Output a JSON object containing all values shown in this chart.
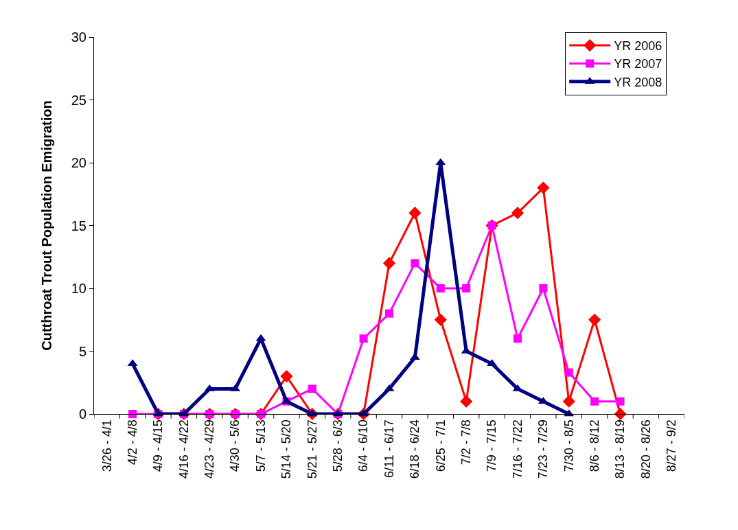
{
  "chart_data": {
    "type": "line",
    "ylabel": "Cutthroat Trout Population Emigration",
    "categories": [
      "3/26 - 4/1",
      "4/2 - 4/8",
      "4/9 - 4/15",
      "4/16 - 4/22",
      "4/23 - 4/29",
      "4/30 - 5/6",
      "5/7 - 5/13",
      "5/14 - 5/20",
      "5/21 - 5/27",
      "5/28 - 6/3",
      "6/4 - 6/10",
      "6/11 - 6/17",
      "6/18 - 6/24",
      "6/25 - 7/1",
      "7/2 - 7/8",
      "7/9 - 7/15",
      "7/16 - 7/22",
      "7/23 - 7/29",
      "7/30 - 8/5",
      "8/6 - 8/12",
      "8/13 - 8/19",
      "8/20 - 8/26",
      "8/27 - 9/2"
    ],
    "ylim": [
      0,
      30
    ],
    "yticks": [
      0,
      5,
      10,
      15,
      20,
      25,
      30
    ],
    "legend": "top right",
    "line_style": "solid",
    "series": [
      {
        "name": "YR 2006",
        "color": "#ff0000",
        "marker": "diamond",
        "values": [
          null,
          null,
          0,
          0,
          0,
          0,
          0,
          3,
          0,
          0,
          0,
          12,
          16,
          7.5,
          1,
          15,
          16,
          18,
          1,
          7.5,
          0,
          null,
          null
        ]
      },
      {
        "name": "YR 2007",
        "color": "#ff00ff",
        "marker": "square",
        "values": [
          null,
          0,
          0,
          0,
          0,
          0,
          0,
          1,
          2,
          0,
          6,
          8,
          12,
          10,
          10,
          15,
          6,
          10,
          3.3,
          1,
          1,
          null,
          null
        ]
      },
      {
        "name": "YR 2008",
        "color": "#000080",
        "marker": "triangle",
        "values": [
          null,
          4,
          0,
          0,
          2,
          2,
          6,
          1,
          0,
          0,
          0,
          2,
          4.5,
          20,
          5,
          4,
          2,
          1,
          0,
          null,
          null,
          null,
          null
        ]
      }
    ]
  }
}
